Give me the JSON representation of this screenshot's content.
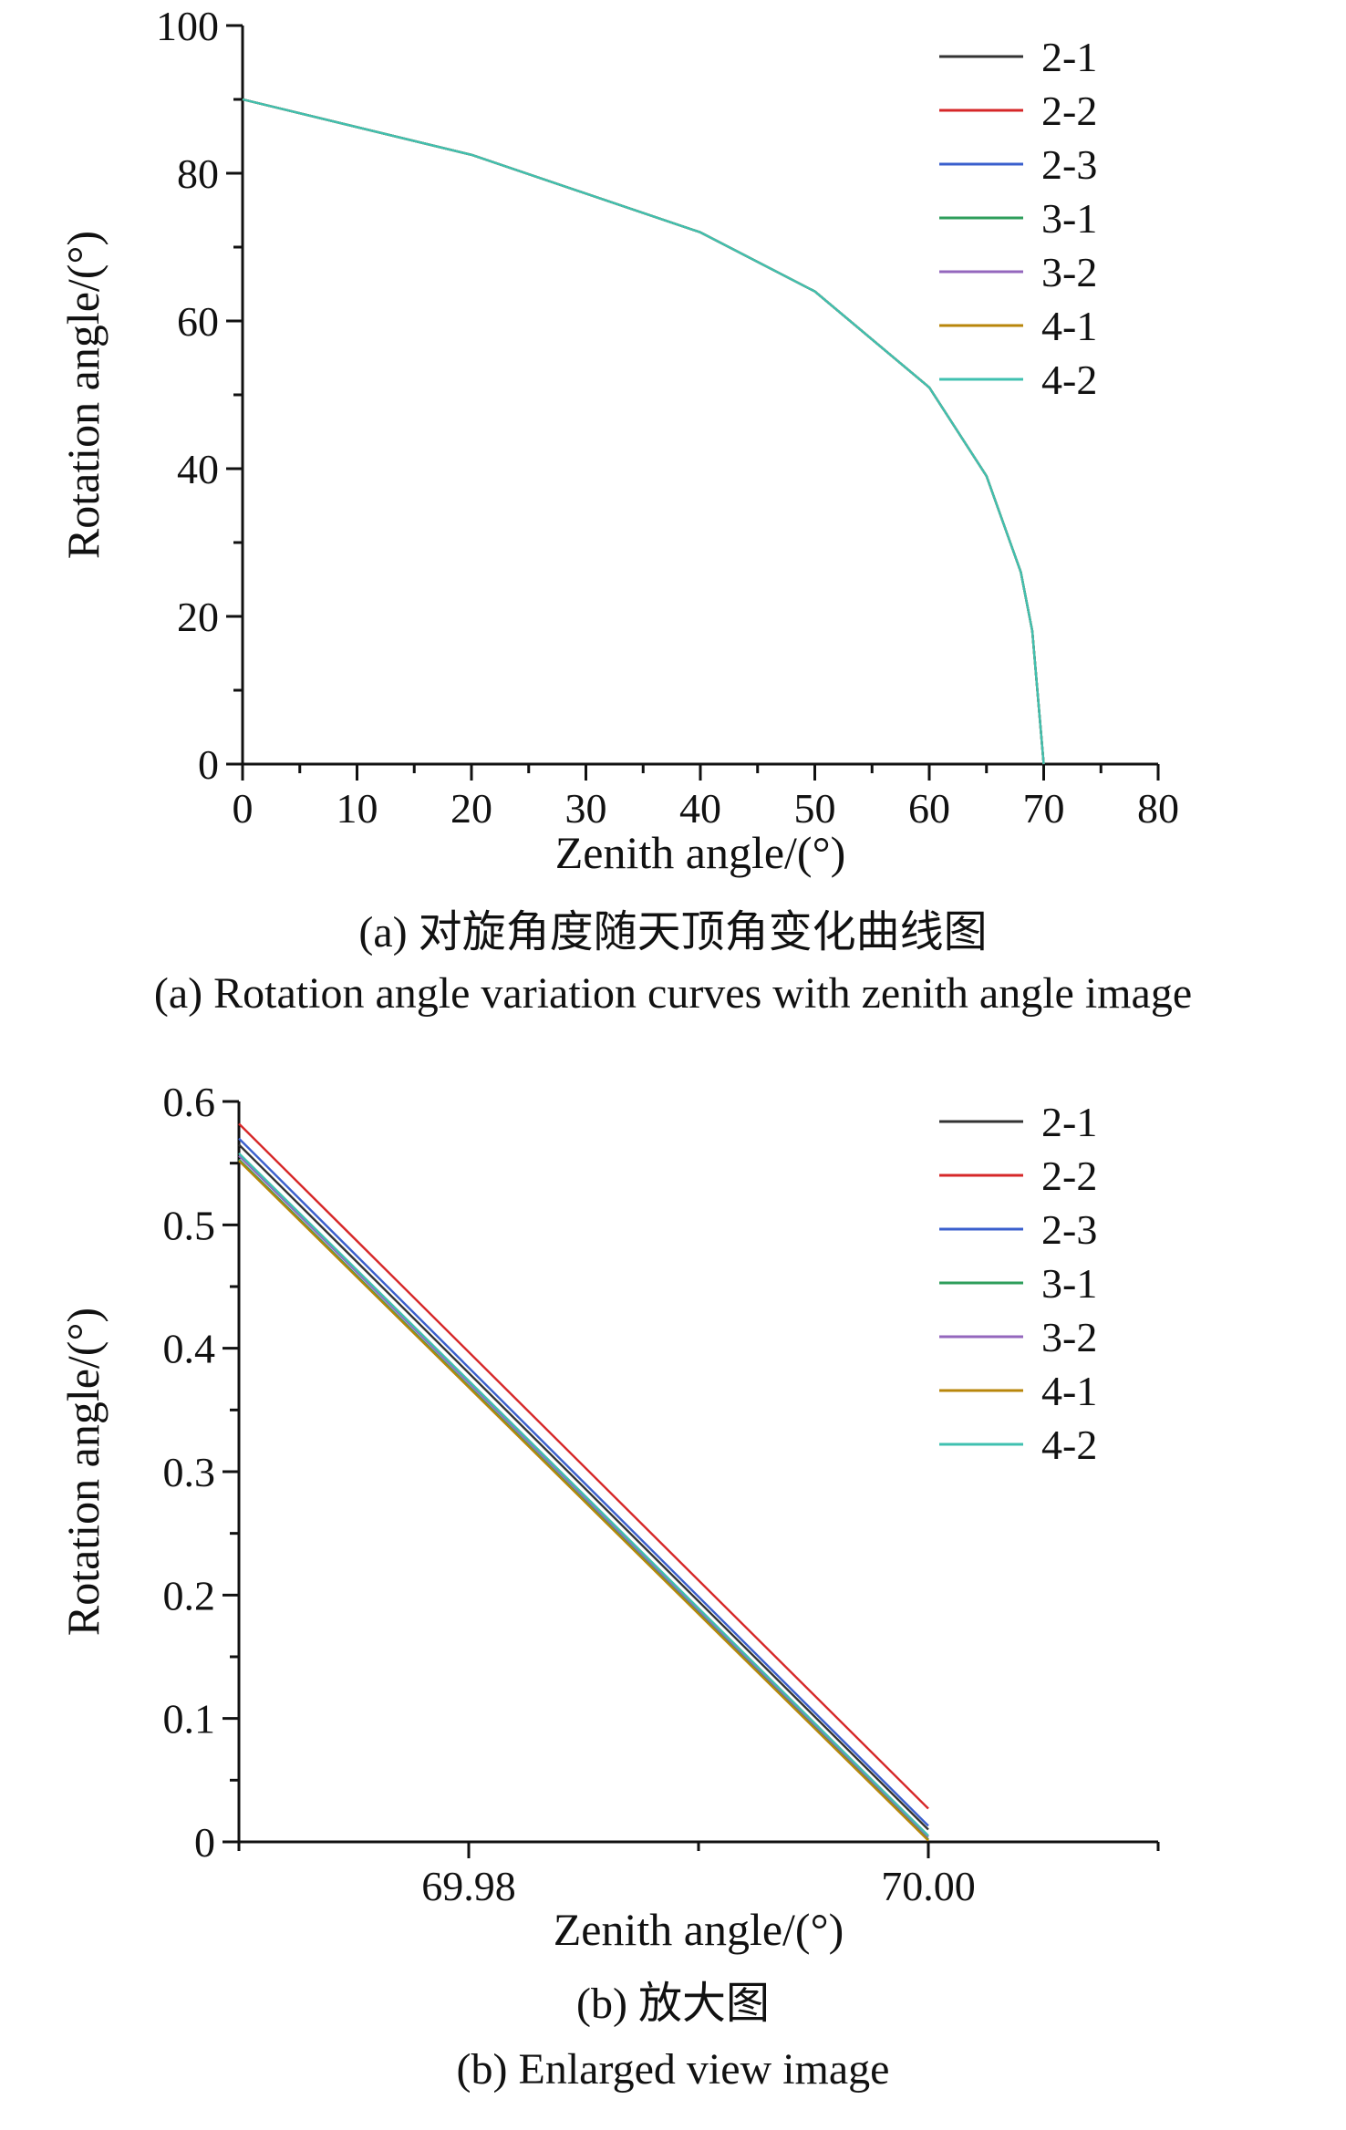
{
  "chart_data": [
    {
      "type": "line",
      "xlabel": "Zenith angle/(°)",
      "ylabel": "Rotation angle/(°)",
      "xlim": [
        0,
        80
      ],
      "ylim": [
        0,
        100
      ],
      "xticks": [
        0,
        10,
        20,
        30,
        40,
        50,
        60,
        70,
        80
      ],
      "yticks": [
        0,
        20,
        40,
        60,
        80,
        100
      ],
      "x_minor_step": 5,
      "y_minor_step": 10,
      "legend_position": "top-right",
      "caption_cn": "(a) 对旋角度随天顶角变化曲线图",
      "caption_en": "(a) Rotation angle variation curves with zenith angle image",
      "series": [
        {
          "name": "2-1",
          "color": "#333333",
          "x": [
            0,
            20,
            40,
            50,
            60,
            65,
            68,
            69,
            70
          ],
          "y": [
            90,
            82.5,
            72,
            64,
            51,
            39,
            26,
            18,
            0
          ]
        },
        {
          "name": "2-2",
          "color": "#d62728",
          "x": [
            0,
            20,
            40,
            50,
            60,
            65,
            68,
            69,
            70
          ],
          "y": [
            90,
            82.5,
            72,
            64,
            51,
            39,
            26,
            18,
            0
          ]
        },
        {
          "name": "2-3",
          "color": "#3a5fcd",
          "x": [
            0,
            20,
            40,
            50,
            60,
            65,
            68,
            69,
            70
          ],
          "y": [
            90,
            82.5,
            72,
            64,
            51,
            39,
            26,
            18,
            0
          ]
        },
        {
          "name": "3-1",
          "color": "#2e9e5b",
          "x": [
            0,
            20,
            40,
            50,
            60,
            65,
            68,
            69,
            70
          ],
          "y": [
            90,
            82.5,
            72,
            64,
            51,
            39,
            26,
            18,
            0
          ]
        },
        {
          "name": "3-2",
          "color": "#9467bd",
          "x": [
            0,
            20,
            40,
            50,
            60,
            65,
            68,
            69,
            70
          ],
          "y": [
            90,
            82.5,
            72,
            64,
            51,
            39,
            26,
            18,
            0
          ]
        },
        {
          "name": "4-1",
          "color": "#b8860b",
          "x": [
            0,
            20,
            40,
            50,
            60,
            65,
            68,
            69,
            70
          ],
          "y": [
            90,
            82.5,
            72,
            64,
            51,
            39,
            26,
            18,
            0
          ]
        },
        {
          "name": "4-2",
          "color": "#40c0b0",
          "x": [
            0,
            20,
            40,
            50,
            60,
            65,
            68,
            69,
            70
          ],
          "y": [
            90,
            82.5,
            72,
            64,
            51,
            39,
            26,
            18,
            0
          ]
        }
      ]
    },
    {
      "type": "line",
      "xlabel": "Zenith angle/(°)",
      "ylabel": "Rotation angle/(°)",
      "xlim": [
        69.97,
        70.01
      ],
      "ylim": [
        0,
        0.6
      ],
      "xticks": [
        69.98,
        70.0
      ],
      "xtick_labels": [
        "69.98",
        "70.00"
      ],
      "yticks": [
        0,
        0.1,
        0.2,
        0.3,
        0.4,
        0.5,
        0.6
      ],
      "ytick_labels": [
        "0",
        "0.1",
        "0.2",
        "0.3",
        "0.4",
        "0.5",
        "0.6"
      ],
      "x_minor_step": 0.01,
      "y_minor_step": 0.05,
      "legend_position": "top-right",
      "caption_cn": "(b) 放大图",
      "caption_en": "(b) Enlarged view image",
      "series": [
        {
          "name": "2-1",
          "color": "#333333",
          "x": [
            69.97,
            70.0
          ],
          "y": [
            0.565,
            0.01
          ]
        },
        {
          "name": "2-2",
          "color": "#d62728",
          "x": [
            69.97,
            70.0
          ],
          "y": [
            0.582,
            0.027
          ]
        },
        {
          "name": "2-3",
          "color": "#3a5fcd",
          "x": [
            69.97,
            70.0
          ],
          "y": [
            0.57,
            0.013
          ]
        },
        {
          "name": "3-1",
          "color": "#2e9e5b",
          "x": [
            69.97,
            70.0
          ],
          "y": [
            0.553,
            0.002
          ]
        },
        {
          "name": "3-2",
          "color": "#9467bd",
          "x": [
            69.97,
            70.0
          ],
          "y": [
            0.556,
            0.004
          ]
        },
        {
          "name": "4-1",
          "color": "#b8860b",
          "x": [
            69.97,
            70.0
          ],
          "y": [
            0.552,
            0.001
          ]
        },
        {
          "name": "4-2",
          "color": "#40c0b0",
          "x": [
            69.97,
            70.0
          ],
          "y": [
            0.558,
            0.005
          ]
        }
      ]
    }
  ]
}
